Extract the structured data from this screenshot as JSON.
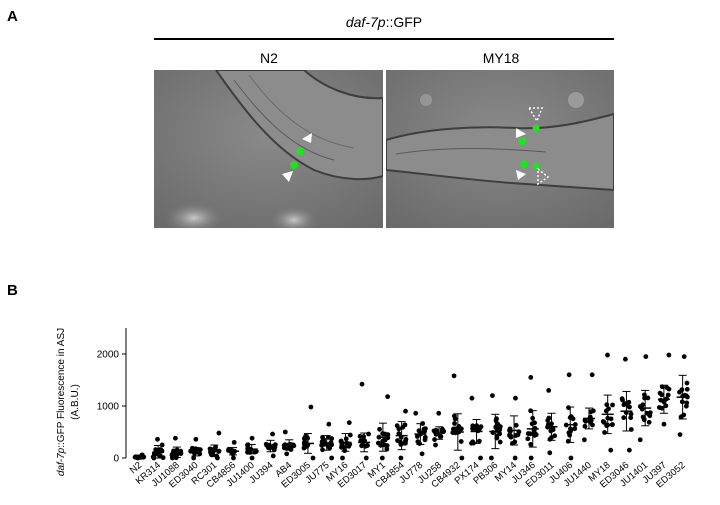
{
  "panel_a": {
    "label": "A",
    "title_italic": "daf-7p",
    "title_rest": "::GFP",
    "left_label": "N2",
    "right_label": "MY18"
  },
  "panel_b": {
    "label": "B"
  },
  "chart_data": {
    "type": "scatter",
    "ylabel_italic": "daf-7p",
    "ylabel_rest": "::GFP Fluorescence in ASJ",
    "ylabel_units": "(A.B.U.)",
    "ylim": [
      0,
      2500
    ],
    "yticks": [
      0,
      1000,
      2000
    ],
    "categories": [
      "N2",
      "KR314",
      "JU1088",
      "ED3040",
      "RC301",
      "CB4856",
      "JU1400",
      "JU394",
      "AB4",
      "ED3005",
      "JU775",
      "MY16",
      "ED3017",
      "MY1",
      "CB4854",
      "JU778",
      "JU258",
      "CB4932",
      "PX174",
      "PB306",
      "MY14",
      "JU346",
      "ED3011",
      "JU406",
      "JU1440",
      "MY18",
      "ED3046",
      "JU1401",
      "JU397",
      "ED3052"
    ],
    "mean": [
      20,
      110,
      110,
      120,
      140,
      130,
      170,
      230,
      250,
      280,
      290,
      300,
      300,
      400,
      430,
      460,
      480,
      500,
      510,
      510,
      530,
      560,
      600,
      640,
      760,
      840,
      900,
      960,
      1130,
      1170
    ],
    "sd": [
      20,
      130,
      100,
      80,
      110,
      70,
      90,
      110,
      100,
      190,
      140,
      170,
      180,
      270,
      270,
      200,
      120,
      350,
      230,
      330,
      280,
      350,
      260,
      340,
      200,
      370,
      380,
      340,
      270,
      420
    ],
    "max": [
      60,
      360,
      380,
      360,
      480,
      300,
      380,
      460,
      500,
      980,
      650,
      680,
      1420,
      1180,
      900,
      860,
      860,
      1580,
      1150,
      1200,
      1150,
      1550,
      1300,
      1600,
      1600,
      1980,
      1900,
      1950,
      1980,
      1950
    ],
    "min": [
      0,
      0,
      0,
      0,
      0,
      0,
      0,
      40,
      80,
      0,
      0,
      0,
      0,
      0,
      0,
      80,
      250,
      0,
      0,
      0,
      0,
      0,
      100,
      0,
      350,
      150,
      150,
      350,
      650,
      450
    ],
    "n": 15
  }
}
